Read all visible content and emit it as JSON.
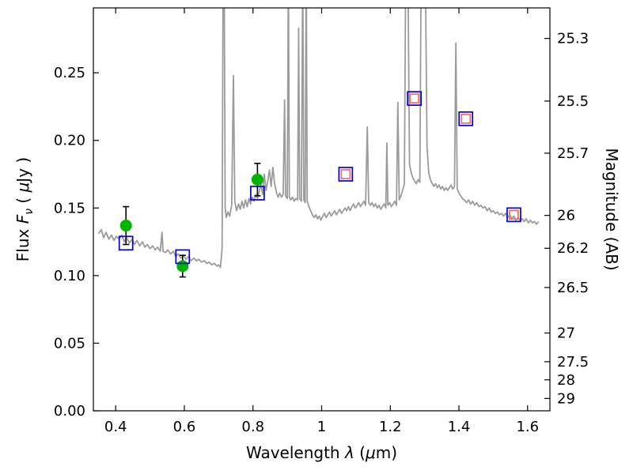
{
  "figure": {
    "background": "#ffffff",
    "spine_color": "#000000",
    "tick_color": "#000000",
    "text_color": "#000000"
  },
  "chart_data": {
    "type": "line",
    "title": "",
    "xlabel": "Wavelength λ (μm)",
    "xlabel_rich": [
      {
        "t": "Wavelength  "
      },
      {
        "t": "λ",
        "italic": true
      },
      {
        "t": " ("
      },
      {
        "t": "μ",
        "italic": true
      },
      {
        "t": "m)"
      }
    ],
    "ylabel_left": "Flux Fν ( μJy )",
    "ylabel_left_rich": [
      {
        "t": "Flux  "
      },
      {
        "t": "F",
        "italic": true
      },
      {
        "t": "ν",
        "italic": true,
        "sub": true
      },
      {
        "t": "  ( "
      },
      {
        "t": "μ",
        "italic": true
      },
      {
        "t": "Jy )"
      }
    ],
    "ylabel_right": "Magnitude (AB)",
    "xlim": [
      0.335,
      1.665
    ],
    "ylim": [
      0.0,
      0.298
    ],
    "x_ticks": [
      0.4,
      0.6,
      0.8,
      1.0,
      1.2,
      1.4,
      1.6
    ],
    "x_tick_labels": [
      "0.4",
      "0.6",
      "0.8",
      "1",
      "1.2",
      "1.4",
      "1.6"
    ],
    "y_ticks_left": [
      0.0,
      0.05,
      0.1,
      0.15,
      0.2,
      0.25
    ],
    "y_tick_labels_left": [
      "0.00",
      "0.05",
      "0.10",
      "0.15",
      "0.20",
      "0.25"
    ],
    "y_ticks_right_mag": [
      25.3,
      25.5,
      25.7,
      26,
      26.2,
      26.5,
      27,
      27.5,
      28,
      29
    ],
    "y_tick_labels_right": [
      "25.3",
      "25.5",
      "25.7",
      "26",
      "26.2",
      "26.5",
      "27",
      "27.5",
      "28",
      "29"
    ],
    "magnitude_zeropoint_uJy": 23.9,
    "grid": false,
    "legend": null,
    "series": [
      {
        "name": "model-spectrum",
        "type": "line",
        "color": "#9b9b9b",
        "width": 1.8,
        "points": [
          [
            0.35,
            0.131
          ],
          [
            0.358,
            0.134
          ],
          [
            0.365,
            0.128
          ],
          [
            0.372,
            0.132
          ],
          [
            0.38,
            0.127
          ],
          [
            0.388,
            0.13
          ],
          [
            0.395,
            0.126
          ],
          [
            0.402,
            0.129
          ],
          [
            0.41,
            0.127
          ],
          [
            0.418,
            0.13
          ],
          [
            0.425,
            0.125
          ],
          [
            0.432,
            0.128
          ],
          [
            0.44,
            0.124
          ],
          [
            0.448,
            0.127
          ],
          [
            0.455,
            0.123
          ],
          [
            0.462,
            0.126
          ],
          [
            0.47,
            0.122
          ],
          [
            0.478,
            0.125
          ],
          [
            0.485,
            0.121
          ],
          [
            0.492,
            0.123
          ],
          [
            0.5,
            0.12
          ],
          [
            0.508,
            0.122
          ],
          [
            0.515,
            0.119
          ],
          [
            0.522,
            0.121
          ],
          [
            0.53,
            0.118
          ],
          [
            0.535,
            0.132
          ],
          [
            0.538,
            0.118
          ],
          [
            0.545,
            0.117
          ],
          [
            0.552,
            0.119
          ],
          [
            0.56,
            0.116
          ],
          [
            0.568,
            0.118
          ],
          [
            0.575,
            0.114
          ],
          [
            0.582,
            0.116
          ],
          [
            0.59,
            0.113
          ],
          [
            0.598,
            0.115
          ],
          [
            0.605,
            0.112
          ],
          [
            0.612,
            0.114
          ],
          [
            0.62,
            0.111
          ],
          [
            0.628,
            0.113
          ],
          [
            0.635,
            0.111
          ],
          [
            0.642,
            0.112
          ],
          [
            0.65,
            0.11
          ],
          [
            0.658,
            0.111
          ],
          [
            0.665,
            0.109
          ],
          [
            0.672,
            0.11
          ],
          [
            0.68,
            0.108
          ],
          [
            0.688,
            0.109
          ],
          [
            0.695,
            0.107
          ],
          [
            0.7,
            0.108
          ],
          [
            0.705,
            0.106
          ],
          [
            0.71,
            0.12
          ],
          [
            0.713,
            0.33
          ],
          [
            0.716,
            0.33
          ],
          [
            0.719,
            0.15
          ],
          [
            0.722,
            0.143
          ],
          [
            0.727,
            0.147
          ],
          [
            0.732,
            0.144
          ],
          [
            0.738,
            0.152
          ],
          [
            0.743,
            0.248
          ],
          [
            0.747,
            0.155
          ],
          [
            0.752,
            0.148
          ],
          [
            0.758,
            0.153
          ],
          [
            0.763,
            0.149
          ],
          [
            0.768,
            0.155
          ],
          [
            0.773,
            0.15
          ],
          [
            0.778,
            0.156
          ],
          [
            0.783,
            0.151
          ],
          [
            0.788,
            0.157
          ],
          [
            0.793,
            0.153
          ],
          [
            0.798,
            0.158
          ],
          [
            0.803,
            0.155
          ],
          [
            0.808,
            0.16
          ],
          [
            0.813,
            0.157
          ],
          [
            0.818,
            0.162
          ],
          [
            0.823,
            0.168
          ],
          [
            0.828,
            0.16
          ],
          [
            0.833,
            0.175
          ],
          [
            0.838,
            0.163
          ],
          [
            0.843,
            0.17
          ],
          [
            0.848,
            0.178
          ],
          [
            0.853,
            0.166
          ],
          [
            0.858,
            0.18
          ],
          [
            0.863,
            0.168
          ],
          [
            0.868,
            0.162
          ],
          [
            0.873,
            0.158
          ],
          [
            0.878,
            0.161
          ],
          [
            0.883,
            0.158
          ],
          [
            0.888,
            0.16
          ],
          [
            0.892,
            0.23
          ],
          [
            0.895,
            0.159
          ],
          [
            0.9,
            0.157
          ],
          [
            0.903,
            0.33
          ],
          [
            0.906,
            0.158
          ],
          [
            0.91,
            0.156
          ],
          [
            0.915,
            0.158
          ],
          [
            0.92,
            0.155
          ],
          [
            0.925,
            0.157
          ],
          [
            0.93,
            0.156
          ],
          [
            0.933,
            0.283
          ],
          [
            0.936,
            0.157
          ],
          [
            0.941,
            0.155
          ],
          [
            0.945,
            0.33
          ],
          [
            0.948,
            0.156
          ],
          [
            0.952,
            0.154
          ],
          [
            0.955,
            0.33
          ],
          [
            0.958,
            0.155
          ],
          [
            0.963,
            0.151
          ],
          [
            0.968,
            0.148
          ],
          [
            0.973,
            0.145
          ],
          [
            0.978,
            0.143
          ],
          [
            0.983,
            0.145
          ],
          [
            0.988,
            0.142
          ],
          [
            0.993,
            0.144
          ],
          [
            0.998,
            0.141
          ],
          [
            1.003,
            0.144
          ],
          [
            1.008,
            0.146
          ],
          [
            1.013,
            0.143
          ],
          [
            1.018,
            0.145
          ],
          [
            1.023,
            0.147
          ],
          [
            1.028,
            0.144
          ],
          [
            1.033,
            0.146
          ],
          [
            1.038,
            0.148
          ],
          [
            1.043,
            0.145
          ],
          [
            1.048,
            0.147
          ],
          [
            1.053,
            0.149
          ],
          [
            1.058,
            0.146
          ],
          [
            1.063,
            0.148
          ],
          [
            1.068,
            0.15
          ],
          [
            1.073,
            0.148
          ],
          [
            1.078,
            0.151
          ],
          [
            1.083,
            0.148
          ],
          [
            1.088,
            0.151
          ],
          [
            1.093,
            0.153
          ],
          [
            1.098,
            0.15
          ],
          [
            1.103,
            0.152
          ],
          [
            1.108,
            0.154
          ],
          [
            1.113,
            0.151
          ],
          [
            1.118,
            0.153
          ],
          [
            1.123,
            0.155
          ],
          [
            1.128,
            0.152
          ],
          [
            1.133,
            0.21
          ],
          [
            1.137,
            0.154
          ],
          [
            1.142,
            0.152
          ],
          [
            1.147,
            0.154
          ],
          [
            1.152,
            0.151
          ],
          [
            1.157,
            0.153
          ],
          [
            1.162,
            0.15
          ],
          [
            1.167,
            0.152
          ],
          [
            1.172,
            0.149
          ],
          [
            1.177,
            0.151
          ],
          [
            1.182,
            0.153
          ],
          [
            1.187,
            0.15
          ],
          [
            1.19,
            0.198
          ],
          [
            1.193,
            0.152
          ],
          [
            1.198,
            0.154
          ],
          [
            1.203,
            0.151
          ],
          [
            1.208,
            0.153
          ],
          [
            1.213,
            0.155
          ],
          [
            1.218,
            0.152
          ],
          [
            1.222,
            0.228
          ],
          [
            1.226,
            0.156
          ],
          [
            1.231,
            0.159
          ],
          [
            1.236,
            0.163
          ],
          [
            1.241,
            0.168
          ],
          [
            1.245,
            0.33
          ],
          [
            1.251,
            0.335
          ],
          [
            1.256,
            0.182
          ],
          [
            1.261,
            0.176
          ],
          [
            1.266,
            0.172
          ],
          [
            1.271,
            0.17
          ],
          [
            1.276,
            0.168
          ],
          [
            1.281,
            0.171
          ],
          [
            1.286,
            0.169
          ],
          [
            1.29,
            0.33
          ],
          [
            1.296,
            0.335
          ],
          [
            1.302,
            0.33
          ],
          [
            1.307,
            0.195
          ],
          [
            1.312,
            0.176
          ],
          [
            1.317,
            0.171
          ],
          [
            1.322,
            0.168
          ],
          [
            1.327,
            0.166
          ],
          [
            1.332,
            0.168
          ],
          [
            1.337,
            0.165
          ],
          [
            1.342,
            0.167
          ],
          [
            1.347,
            0.164
          ],
          [
            1.352,
            0.166
          ],
          [
            1.357,
            0.163
          ],
          [
            1.362,
            0.165
          ],
          [
            1.367,
            0.163
          ],
          [
            1.372,
            0.165
          ],
          [
            1.377,
            0.167
          ],
          [
            1.382,
            0.164
          ],
          [
            1.387,
            0.166
          ],
          [
            1.391,
            0.272
          ],
          [
            1.395,
            0.164
          ],
          [
            1.4,
            0.161
          ],
          [
            1.405,
            0.159
          ],
          [
            1.41,
            0.157
          ],
          [
            1.416,
            0.156
          ],
          [
            1.422,
            0.154
          ],
          [
            1.428,
            0.156
          ],
          [
            1.434,
            0.153
          ],
          [
            1.44,
            0.155
          ],
          [
            1.446,
            0.152
          ],
          [
            1.452,
            0.154
          ],
          [
            1.458,
            0.151
          ],
          [
            1.464,
            0.152
          ],
          [
            1.47,
            0.15
          ],
          [
            1.476,
            0.151
          ],
          [
            1.482,
            0.148
          ],
          [
            1.488,
            0.15
          ],
          [
            1.494,
            0.147
          ],
          [
            1.5,
            0.148
          ],
          [
            1.506,
            0.146
          ],
          [
            1.512,
            0.147
          ],
          [
            1.518,
            0.145
          ],
          [
            1.524,
            0.146
          ],
          [
            1.53,
            0.144
          ],
          [
            1.536,
            0.146
          ],
          [
            1.542,
            0.143
          ],
          [
            1.548,
            0.145
          ],
          [
            1.554,
            0.142
          ],
          [
            1.56,
            0.144
          ],
          [
            1.566,
            0.141
          ],
          [
            1.572,
            0.143
          ],
          [
            1.578,
            0.141
          ],
          [
            1.584,
            0.142
          ],
          [
            1.59,
            0.14
          ],
          [
            1.596,
            0.142
          ],
          [
            1.602,
            0.139
          ],
          [
            1.608,
            0.141
          ],
          [
            1.614,
            0.139
          ],
          [
            1.62,
            0.14
          ],
          [
            1.626,
            0.138
          ],
          [
            1.632,
            0.14
          ]
        ]
      },
      {
        "name": "observed-flux-green-circles",
        "type": "scatter",
        "marker": "circle-filled",
        "color": "#00b300",
        "size": 15,
        "error_color": "#000000",
        "points": [
          {
            "x": 0.43,
            "y": 0.137,
            "yerr": 0.014
          },
          {
            "x": 0.595,
            "y": 0.107,
            "yerr": 0.008
          },
          {
            "x": 0.813,
            "y": 0.171,
            "yerr": 0.012
          }
        ]
      },
      {
        "name": "model-photometry-blue-squares",
        "type": "scatter",
        "marker": "square-open",
        "color": "#0000e6",
        "size": 17,
        "points": [
          {
            "x": 0.43,
            "y": 0.124
          },
          {
            "x": 0.595,
            "y": 0.114
          },
          {
            "x": 0.813,
            "y": 0.161
          },
          {
            "x": 1.07,
            "y": 0.175
          },
          {
            "x": 1.27,
            "y": 0.231
          },
          {
            "x": 1.42,
            "y": 0.216
          },
          {
            "x": 1.56,
            "y": 0.145
          }
        ]
      },
      {
        "name": "observed-photometry-red-squares",
        "type": "scatter",
        "marker": "square-open",
        "color": "#ff6666",
        "size": 11,
        "points": [
          {
            "x": 1.07,
            "y": 0.175
          },
          {
            "x": 1.27,
            "y": 0.231
          },
          {
            "x": 1.42,
            "y": 0.216
          },
          {
            "x": 1.56,
            "y": 0.145
          }
        ]
      }
    ]
  }
}
